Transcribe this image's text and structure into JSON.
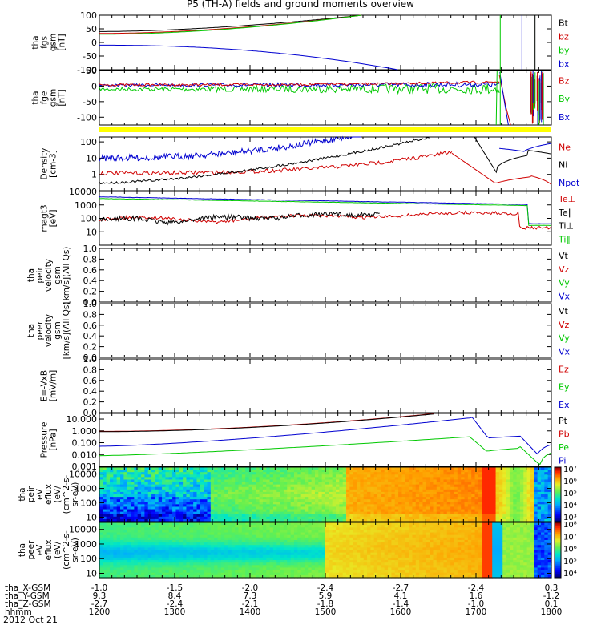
{
  "title": "P5 (TH-A) fields and ground moments overview",
  "date": "2012 Oct 21",
  "colors": {
    "black": "#000000",
    "red": "#d00000",
    "green": "#00c800",
    "blue": "#0000d0",
    "yellow": "#ffff00"
  },
  "colorbar_ticks_efi": [
    "10⁷",
    "10⁶",
    "10⁵",
    "10⁴",
    "10³"
  ],
  "colorbar_ticks_efe": [
    "10⁸",
    "10⁷",
    "10⁶",
    "10⁵",
    "10⁴"
  ],
  "ephemeris": {
    "rows": [
      {
        "label": "tha_X-GSM",
        "values": [
          "-1.0",
          "-1.5",
          "-2.0",
          "-2.4",
          "-2.7",
          "-2.4",
          "0.3"
        ]
      },
      {
        "label": "tha_Y-GSM",
        "values": [
          "9.3",
          "8.4",
          "7.3",
          "5.9",
          "4.1",
          "1.6",
          "-1.2"
        ]
      },
      {
        "label": "tha_Z-GSM",
        "values": [
          "-2.7",
          "-2.4",
          "-2.1",
          "-1.8",
          "-1.4",
          "-1.0",
          "0.1"
        ]
      },
      {
        "label": "hhmm",
        "values": [
          "1200",
          "1300",
          "1400",
          "1500",
          "1600",
          "1700",
          "1800"
        ]
      }
    ]
  },
  "chart_data": [
    {
      "type": "line",
      "id": "fgs",
      "ylabel": [
        "tha",
        "fgs",
        "gsm",
        "[nT]"
      ],
      "ylim": [
        -100,
        100
      ],
      "yticks": [
        "100",
        "50",
        "0",
        "-50",
        "-100"
      ],
      "legend": [
        {
          "name": "Bt",
          "color": "#000000"
        },
        {
          "name": "bz",
          "color": "#d00000"
        },
        {
          "name": "by",
          "color": "#00c800"
        },
        {
          "name": "bx",
          "color": "#0000d0"
        }
      ]
    },
    {
      "type": "line",
      "id": "fge",
      "ylabel": [
        "tha",
        "fge",
        "gsm",
        "[nT]"
      ],
      "ylim": [
        -125,
        50
      ],
      "yticks": [
        "50",
        "0",
        "-50",
        "-100"
      ],
      "legend": [
        {
          "name": "Bz",
          "color": "#d00000"
        },
        {
          "name": "By",
          "color": "#00c800"
        },
        {
          "name": "Bx",
          "color": "#0000d0"
        }
      ]
    },
    {
      "type": "line",
      "id": "density",
      "ylabel": [
        "Density",
        "[cm-3]"
      ],
      "ylim": [
        0.1,
        200
      ],
      "yticks": [
        "100",
        "10",
        "1"
      ],
      "legend": [
        {
          "name": "Ne",
          "color": "#d00000"
        },
        {
          "name": "Ni",
          "color": "#000000"
        },
        {
          "name": "Npot",
          "color": "#0000d0"
        }
      ]
    },
    {
      "type": "line",
      "id": "temp",
      "ylabel": [
        "magt3",
        "[eV]"
      ],
      "ylim": [
        1,
        10000
      ],
      "yticks": [
        "10000",
        "1000",
        "100",
        "10"
      ],
      "legend": [
        {
          "name": "Te⊥",
          "color": "#d00000"
        },
        {
          "name": "Te∥",
          "color": "#000000"
        },
        {
          "name": "Ti⊥",
          "color": "#000000"
        },
        {
          "name": "Ti∥",
          "color": "#00c800"
        }
      ]
    },
    {
      "type": "line",
      "id": "vi",
      "ylabel": [
        "tha",
        "peir",
        "velocity",
        "gsm",
        "[km/s](All Qs)"
      ],
      "ylim": [
        0,
        1
      ],
      "yticks": [
        "1.0",
        "0.8",
        "0.6",
        "0.4",
        "0.2",
        "0.0"
      ],
      "legend": [
        {
          "name": "Vt",
          "color": "#000000"
        },
        {
          "name": "Vz",
          "color": "#d00000"
        },
        {
          "name": "Vy",
          "color": "#00c800"
        },
        {
          "name": "Vx",
          "color": "#0000d0"
        }
      ]
    },
    {
      "type": "line",
      "id": "ve",
      "ylabel": [
        "tha",
        "peer",
        "velocity",
        "gsm",
        "[km/s](All Qs)"
      ],
      "ylim": [
        0,
        1
      ],
      "yticks": [
        "1.0",
        "0.8",
        "0.6",
        "0.4",
        "0.2",
        "0.0"
      ],
      "legend": [
        {
          "name": "Vt",
          "color": "#000000"
        },
        {
          "name": "Vz",
          "color": "#d00000"
        },
        {
          "name": "Vy",
          "color": "#00c800"
        },
        {
          "name": "Vx",
          "color": "#0000d0"
        }
      ]
    },
    {
      "type": "line",
      "id": "efield",
      "ylabel": [
        "E=-VxB",
        "[mV/m]"
      ],
      "ylim": [
        0,
        1
      ],
      "yticks": [
        "1.0",
        "0.8",
        "0.6",
        "0.4",
        "0.2",
        "0.0"
      ],
      "legend": [
        {
          "name": "Ez",
          "color": "#d00000"
        },
        {
          "name": "Ey",
          "color": "#00c800"
        },
        {
          "name": "Ex",
          "color": "#0000d0"
        }
      ]
    },
    {
      "type": "line",
      "id": "pressure",
      "ylabel": [
        "Pressure",
        "[nPa]"
      ],
      "ylim": [
        0.001,
        30
      ],
      "yticks": [
        "10.000",
        "1.000",
        "0.100",
        "0.010",
        "0.001"
      ],
      "legend": [
        {
          "name": "Pt",
          "color": "#000000"
        },
        {
          "name": "Pb",
          "color": "#d00000"
        },
        {
          "name": "Pe",
          "color": "#00c800"
        },
        {
          "name": "Pi",
          "color": "#0000d0"
        }
      ]
    },
    {
      "type": "heatmap",
      "id": "peir",
      "ylabel": [
        "tha",
        "peir",
        "eV",
        "eflux",
        "(eV/",
        "(cm^2-s-",
        "sr-eV)"
      ],
      "ylim": [
        5,
        30000
      ],
      "yticks": [
        "10000",
        "1000",
        "100",
        "10"
      ]
    },
    {
      "type": "heatmap",
      "id": "peer",
      "ylabel": [
        "tha",
        "peer",
        "eV",
        "eflux",
        "(eV/",
        "(cm^2-s-",
        "sr-eV)"
      ],
      "ylim": [
        5,
        30000
      ],
      "yticks": [
        "10000",
        "1000",
        "100",
        "10"
      ]
    }
  ]
}
